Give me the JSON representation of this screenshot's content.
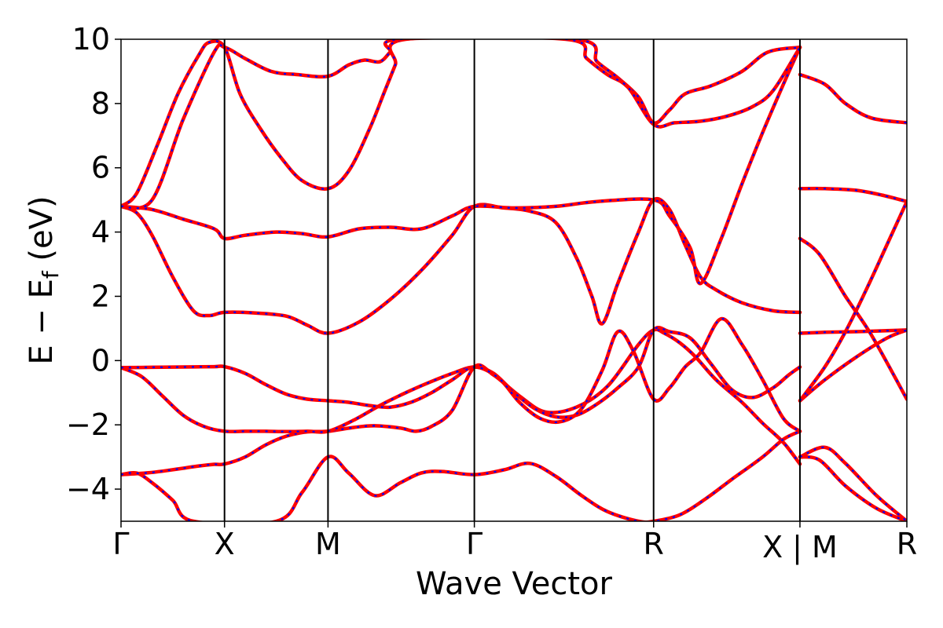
{
  "chart_data": {
    "type": "line",
    "title": "",
    "xlabel": "Wave Vector",
    "ylabel": "E − E",
    "ylabel_sub": "f",
    "ylabel_unit": " (eV)",
    "ylim": [
      -5,
      10
    ],
    "yticks": [
      -4,
      -2,
      0,
      2,
      4,
      6,
      8,
      10
    ],
    "ytick_labels": [
      "−4",
      "−2",
      "0",
      "2",
      "4",
      "6",
      "8",
      "10"
    ],
    "xlim": [
      0,
      7.593
    ],
    "kpoint_positions": [
      0,
      1,
      2,
      3.414,
      5.146,
      6.56,
      7.593
    ],
    "kpoint_labels": [
      "Γ",
      "X",
      "M",
      "Γ",
      "R",
      "X | M",
      "R"
    ],
    "segments": [
      [
        0,
        1
      ],
      [
        1,
        2
      ],
      [
        2,
        3.414
      ],
      [
        3.414,
        5.146
      ],
      [
        5.146,
        6.56
      ],
      [
        6.56,
        7.593
      ]
    ],
    "colors": {
      "series_a": "#ff0000",
      "series_b": "#0000ff"
    },
    "bands": [
      [
        [
          0,
          -3.55
        ],
        [
          0.15,
          -3.52
        ],
        [
          0.3,
          -3.48
        ],
        [
          0.45,
          -3.42
        ],
        [
          0.6,
          -3.35
        ],
        [
          0.75,
          -3.28
        ],
        [
          0.9,
          -3.23
        ],
        [
          1.0,
          -3.22
        ],
        [
          1.2,
          -3.0
        ],
        [
          1.4,
          -2.62
        ],
        [
          1.6,
          -2.35
        ],
        [
          1.8,
          -2.22
        ],
        [
          2.0,
          -2.2
        ],
        [
          2.25,
          -2.08
        ],
        [
          2.45,
          -2.03
        ],
        [
          2.7,
          -2.1
        ],
        [
          2.85,
          -2.2
        ],
        [
          3.0,
          -2.05
        ],
        [
          3.2,
          -1.55
        ],
        [
          3.414,
          -0.2
        ],
        [
          3.6,
          -0.45
        ],
        [
          3.85,
          -1.1
        ],
        [
          4.1,
          -1.6
        ],
        [
          4.4,
          -1.45
        ],
        [
          4.7,
          -0.8
        ],
        [
          5.0,
          0.5
        ],
        [
          5.146,
          0.95
        ],
        [
          5.25,
          0.85
        ],
        [
          5.4,
          0.55
        ],
        [
          5.55,
          0.12
        ],
        [
          5.75,
          -0.6
        ],
        [
          6.0,
          -1.3
        ],
        [
          6.2,
          -1.95
        ],
        [
          6.4,
          -2.55
        ],
        [
          6.56,
          -3.22
        ],
        [
          6.56,
          -3.0
        ],
        [
          6.75,
          -3.1
        ],
        [
          7.0,
          -3.9
        ],
        [
          7.3,
          -4.6
        ],
        [
          7.593,
          -5.0
        ]
      ],
      [
        [
          0,
          -0.22
        ],
        [
          0.2,
          -0.5
        ],
        [
          0.4,
          -1.1
        ],
        [
          0.6,
          -1.7
        ],
        [
          0.8,
          -2.05
        ],
        [
          1.0,
          -2.2
        ],
        [
          1.2,
          -2.2
        ],
        [
          1.4,
          -2.2
        ],
        [
          1.6,
          -2.21
        ],
        [
          1.8,
          -2.2
        ],
        [
          2.0,
          -2.2
        ],
        [
          2.25,
          -1.85
        ],
        [
          2.5,
          -1.4
        ],
        [
          2.75,
          -1.0
        ],
        [
          3.0,
          -0.65
        ],
        [
          3.2,
          -0.4
        ],
        [
          3.414,
          -0.2
        ],
        [
          3.6,
          -0.4
        ],
        [
          3.8,
          -1.0
        ],
        [
          4.0,
          -1.5
        ],
        [
          4.2,
          -1.75
        ],
        [
          4.4,
          -1.7
        ],
        [
          4.6,
          -1.35
        ],
        [
          4.8,
          -0.85
        ],
        [
          5.0,
          -0.2
        ],
        [
          5.146,
          0.95
        ],
        [
          5.3,
          0.9
        ],
        [
          5.5,
          0.7
        ],
        [
          5.7,
          -0.1
        ],
        [
          5.9,
          -0.9
        ],
        [
          6.1,
          -1.15
        ],
        [
          6.3,
          -0.85
        ],
        [
          6.45,
          -0.45
        ],
        [
          6.56,
          -0.2
        ],
        [
          6.56,
          0.85
        ],
        [
          6.8,
          0.88
        ],
        [
          7.1,
          0.9
        ],
        [
          7.4,
          0.93
        ],
        [
          7.593,
          0.95
        ]
      ],
      [
        [
          0,
          -0.22
        ],
        [
          0.3,
          -0.21
        ],
        [
          0.6,
          -0.2
        ],
        [
          0.9,
          -0.19
        ],
        [
          1.0,
          -0.19
        ],
        [
          1.2,
          -0.4
        ],
        [
          1.4,
          -0.75
        ],
        [
          1.6,
          -1.05
        ],
        [
          1.8,
          -1.2
        ],
        [
          2.0,
          -1.25
        ],
        [
          2.2,
          -1.3
        ],
        [
          2.4,
          -1.4
        ],
        [
          2.6,
          -1.45
        ],
        [
          2.8,
          -1.3
        ],
        [
          3.0,
          -1.0
        ],
        [
          3.2,
          -0.6
        ],
        [
          3.414,
          -0.2
        ],
        [
          3.65,
          -0.55
        ],
        [
          3.85,
          -1.3
        ],
        [
          4.05,
          -1.8
        ],
        [
          4.25,
          -1.9
        ],
        [
          4.45,
          -1.5
        ],
        [
          4.65,
          -0.3
        ],
        [
          4.8,
          0.9
        ],
        [
          4.95,
          0.3
        ],
        [
          5.146,
          -1.2
        ],
        [
          5.3,
          -0.85
        ],
        [
          5.45,
          -0.2
        ],
        [
          5.6,
          0.25
        ],
        [
          5.8,
          1.3
        ],
        [
          6.0,
          0.5
        ],
        [
          6.2,
          -0.6
        ],
        [
          6.4,
          -1.8
        ],
        [
          6.56,
          -2.2
        ],
        [
          6.56,
          -1.25
        ],
        [
          6.8,
          -0.6
        ],
        [
          7.1,
          0.1
        ],
        [
          7.4,
          0.7
        ],
        [
          7.593,
          0.95
        ]
      ],
      [
        [
          0,
          -3.55
        ],
        [
          0.15,
          -3.5
        ],
        [
          0.3,
          -3.8
        ],
        [
          0.5,
          -4.35
        ],
        [
          0.7,
          -5.0
        ],
        [
          1.5,
          -5.0
        ],
        [
          1.75,
          -4.1
        ],
        [
          2.0,
          -3.0
        ],
        [
          2.2,
          -3.5
        ],
        [
          2.45,
          -4.2
        ],
        [
          2.7,
          -3.8
        ],
        [
          2.9,
          -3.5
        ],
        [
          3.1,
          -3.45
        ],
        [
          3.414,
          -3.55
        ],
        [
          3.7,
          -3.4
        ],
        [
          3.95,
          -3.2
        ],
        [
          4.2,
          -3.6
        ],
        [
          4.45,
          -4.2
        ],
        [
          4.7,
          -4.7
        ],
        [
          5.0,
          -5.0
        ],
        [
          5.146,
          -5.0
        ],
        [
          5.4,
          -4.8
        ],
        [
          5.65,
          -4.3
        ],
        [
          5.9,
          -3.7
        ],
        [
          6.2,
          -3.0
        ],
        [
          6.4,
          -2.45
        ],
        [
          6.56,
          -2.2
        ],
        [
          6.56,
          -3.0
        ],
        [
          6.8,
          -2.7
        ],
        [
          7.0,
          -3.2
        ],
        [
          7.3,
          -4.2
        ],
        [
          7.593,
          -5.0
        ]
      ],
      [
        [
          0,
          4.8
        ],
        [
          0.15,
          4.6
        ],
        [
          0.3,
          3.9
        ],
        [
          0.5,
          2.6
        ],
        [
          0.7,
          1.55
        ],
        [
          0.85,
          1.4
        ],
        [
          1.0,
          1.5
        ],
        [
          1.3,
          1.48
        ],
        [
          1.6,
          1.38
        ],
        [
          1.8,
          1.1
        ],
        [
          2.0,
          0.85
        ],
        [
          2.3,
          1.2
        ],
        [
          2.6,
          1.9
        ],
        [
          2.9,
          2.8
        ],
        [
          3.2,
          3.9
        ],
        [
          3.414,
          4.8
        ],
        [
          3.7,
          4.75
        ],
        [
          3.95,
          4.65
        ],
        [
          4.2,
          4.3
        ],
        [
          4.4,
          3.2
        ],
        [
          4.55,
          2.0
        ],
        [
          4.65,
          1.15
        ],
        [
          4.8,
          2.4
        ],
        [
          5.0,
          4.0
        ],
        [
          5.146,
          5.0
        ],
        [
          5.3,
          4.7
        ],
        [
          5.45,
          3.6
        ],
        [
          5.6,
          2.6
        ],
        [
          5.75,
          2.2
        ],
        [
          6.0,
          1.8
        ],
        [
          6.3,
          1.55
        ],
        [
          6.56,
          1.5
        ],
        [
          6.56,
          5.35
        ],
        [
          6.8,
          5.35
        ],
        [
          7.1,
          5.3
        ],
        [
          7.35,
          5.15
        ],
        [
          7.593,
          4.95
        ]
      ],
      [
        [
          0,
          4.8
        ],
        [
          0.15,
          5.2
        ],
        [
          0.35,
          6.7
        ],
        [
          0.55,
          8.3
        ],
        [
          0.75,
          9.5
        ],
        [
          0.85,
          9.9
        ],
        [
          1.0,
          9.75
        ],
        [
          1.15,
          8.3
        ],
        [
          1.35,
          7.2
        ],
        [
          1.55,
          6.3
        ],
        [
          1.75,
          5.6
        ],
        [
          2.0,
          5.35
        ],
        [
          2.2,
          5.9
        ],
        [
          2.4,
          7.2
        ],
        [
          2.55,
          8.4
        ],
        [
          2.65,
          9.2
        ],
        [
          2.75,
          10.0
        ],
        [
          4.4,
          10.0
        ],
        [
          4.6,
          9.3
        ],
        [
          4.8,
          8.8
        ],
        [
          5.0,
          8.2
        ],
        [
          5.146,
          7.4
        ],
        [
          5.3,
          7.8
        ],
        [
          5.45,
          8.3
        ],
        [
          5.7,
          8.55
        ],
        [
          6.0,
          9.0
        ],
        [
          6.25,
          9.6
        ],
        [
          6.56,
          9.75
        ],
        [
          6.56,
          8.9
        ],
        [
          6.8,
          8.6
        ],
        [
          7.0,
          8.0
        ],
        [
          7.25,
          7.55
        ],
        [
          7.593,
          7.4
        ]
      ],
      [
        [
          0,
          4.8
        ],
        [
          0.3,
          4.7
        ],
        [
          0.6,
          4.4
        ],
        [
          0.9,
          4.1
        ],
        [
          1.0,
          3.8
        ],
        [
          1.2,
          3.9
        ],
        [
          1.5,
          4.0
        ],
        [
          1.75,
          3.95
        ],
        [
          2.0,
          3.85
        ],
        [
          2.3,
          4.1
        ],
        [
          2.6,
          4.15
        ],
        [
          2.9,
          4.1
        ],
        [
          3.2,
          4.5
        ],
        [
          3.414,
          4.8
        ],
        [
          3.8,
          4.75
        ],
        [
          4.2,
          4.8
        ],
        [
          4.6,
          4.95
        ],
        [
          5.146,
          5.0
        ],
        [
          5.3,
          4.5
        ],
        [
          5.5,
          3.5
        ],
        [
          5.6,
          2.4
        ],
        [
          5.8,
          3.8
        ],
        [
          6.0,
          5.5
        ],
        [
          6.2,
          7.1
        ],
        [
          6.4,
          8.6
        ],
        [
          6.56,
          9.75
        ],
        [
          6.56,
          3.8
        ],
        [
          6.75,
          3.3
        ],
        [
          7.0,
          2.0
        ],
        [
          7.25,
          0.8
        ],
        [
          7.593,
          -1.2
        ]
      ],
      [
        [
          0,
          4.8
        ],
        [
          0.3,
          5.0
        ],
        [
          0.6,
          7.5
        ],
        [
          0.9,
          9.6
        ],
        [
          1.0,
          9.75
        ],
        [
          1.2,
          9.4
        ],
        [
          1.45,
          9.0
        ],
        [
          1.7,
          8.9
        ],
        [
          2.0,
          8.85
        ],
        [
          2.2,
          9.2
        ],
        [
          2.35,
          9.35
        ],
        [
          2.5,
          9.3
        ],
        [
          2.6,
          9.6
        ],
        [
          2.7,
          10.0
        ],
        [
          4.3,
          10.0
        ],
        [
          4.5,
          9.4
        ],
        [
          4.7,
          8.9
        ],
        [
          4.9,
          8.5
        ],
        [
          5.146,
          7.35
        ],
        [
          5.35,
          7.4
        ],
        [
          5.6,
          7.45
        ],
        [
          5.85,
          7.6
        ],
        [
          6.1,
          7.9
        ],
        [
          6.3,
          8.4
        ],
        [
          6.56,
          9.75
        ],
        [
          6.56,
          -1.25
        ],
        [
          6.8,
          -0.2
        ],
        [
          7.0,
          0.9
        ],
        [
          7.2,
          2.2
        ],
        [
          7.4,
          3.6
        ],
        [
          7.593,
          4.95
        ]
      ]
    ]
  }
}
